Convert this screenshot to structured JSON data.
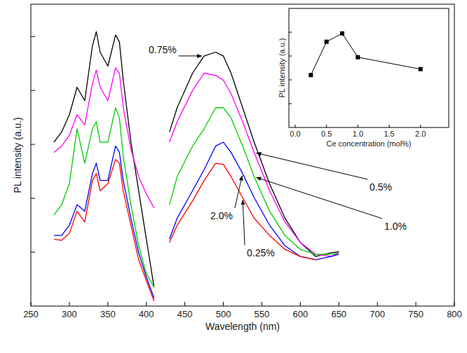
{
  "chart_data": [
    {
      "type": "line",
      "xlabel": "Wavelength (nm)",
      "ylabel": "PL intensity (a.u.)",
      "x": [
        280,
        290,
        300,
        310,
        320,
        330,
        335,
        340,
        350,
        360,
        365,
        370,
        380,
        390,
        400,
        410,
        420,
        430,
        440,
        460,
        475,
        490,
        500,
        510,
        525,
        540,
        560,
        580,
        600,
        620,
        640,
        650
      ],
      "series": [
        {
          "name": "0.75%",
          "color": "#000000",
          "values": [
            30.4,
            32.3,
            35.5,
            40.6,
            38.1,
            48.3,
            50.9,
            47.1,
            44.5,
            50.3,
            49.0,
            41.9,
            30.4,
            21.4,
            12.4,
            3.5,
            null,
            32.3,
            36.8,
            43.2,
            46.4,
            47.1,
            46.4,
            43.2,
            36.8,
            30.4,
            22.7,
            16.3,
            11.8,
            9.2,
            9.9,
            10.1
          ]
        },
        {
          "name": "0.5%",
          "color": "#ff00ff",
          "values": [
            28.5,
            29.7,
            31.7,
            35.5,
            33.6,
            41.3,
            43.8,
            40.6,
            38.1,
            44.2,
            43.2,
            36.8,
            29.1,
            24.0,
            20.8,
            18.2,
            null,
            30.4,
            34.2,
            40.0,
            43.2,
            42.8,
            41.9,
            39.4,
            34.2,
            28.5,
            21.4,
            15.6,
            11.8,
            9.6,
            9.2,
            9.9
          ]
        },
        {
          "name": "1.0%",
          "color": "#00cc00",
          "values": [
            16.9,
            18.8,
            22.7,
            32.9,
            26.5,
            32.9,
            34.2,
            30.4,
            30.4,
            36.8,
            34.9,
            27.8,
            18.8,
            11.2,
            6.0,
            3.5,
            null,
            18.8,
            24.0,
            29.7,
            32.9,
            36.8,
            36.8,
            34.9,
            29.7,
            24.0,
            17.6,
            13.1,
            10.5,
            9.6,
            9.6,
            9.9
          ]
        },
        {
          "name": "2.0%",
          "color": "#0000ff",
          "values": [
            13.1,
            13.1,
            15.0,
            18.8,
            17.6,
            24.6,
            26.5,
            23.3,
            23.3,
            29.7,
            28.5,
            23.3,
            16.3,
            9.9,
            5.4,
            1.5,
            null,
            12.4,
            16.3,
            21.4,
            25.3,
            29.7,
            30.4,
            28.5,
            24.6,
            20.1,
            15.0,
            11.2,
            9.2,
            8.6,
            9.2,
            9.6
          ]
        },
        {
          "name": "0.25%",
          "color": "#ff0000",
          "values": [
            12.4,
            12.2,
            13.5,
            17.6,
            15.6,
            23.3,
            24.6,
            21.4,
            22.7,
            27.2,
            26.5,
            21.4,
            15.0,
            8.6,
            4.7,
            0.9,
            null,
            11.8,
            15.0,
            19.5,
            23.3,
            26.5,
            26.3,
            24.0,
            20.1,
            16.3,
            13.1,
            10.5,
            9.2,
            8.6,
            null,
            null
          ]
        }
      ],
      "xlim": [
        250,
        800
      ],
      "xticks": [
        250,
        300,
        350,
        400,
        450,
        500,
        550,
        600,
        650,
        700,
        750,
        800
      ],
      "ylim": [
        0,
        56
      ],
      "yticks": [
        10,
        20,
        30,
        40,
        50
      ],
      "tick_labels": "x"
    },
    {
      "type": "line",
      "xlabel": "Ce concentration (mol%)",
      "ylabel": "PL intensity (a.u.)",
      "x": [
        0.25,
        0.5,
        0.75,
        1.0,
        2.0
      ],
      "values": [
        4.4,
        7.2,
        7.9,
        5.9,
        4.9
      ],
      "color": "#000000",
      "marker": "square",
      "xlim": [
        -0.1,
        2.45
      ],
      "xticks": [
        {
          "value": 0,
          "label": "0.0"
        },
        {
          "value": 0.5,
          "label": "0.5"
        },
        {
          "value": 1,
          "label": "1.0"
        },
        {
          "value": 1.5,
          "label": "1.5"
        },
        {
          "value": 2,
          "label": "2.0"
        }
      ],
      "ylim": [
        0,
        10
      ],
      "yticks": [
        2,
        4,
        6,
        8
      ],
      "tick_labels": "x"
    }
  ]
}
